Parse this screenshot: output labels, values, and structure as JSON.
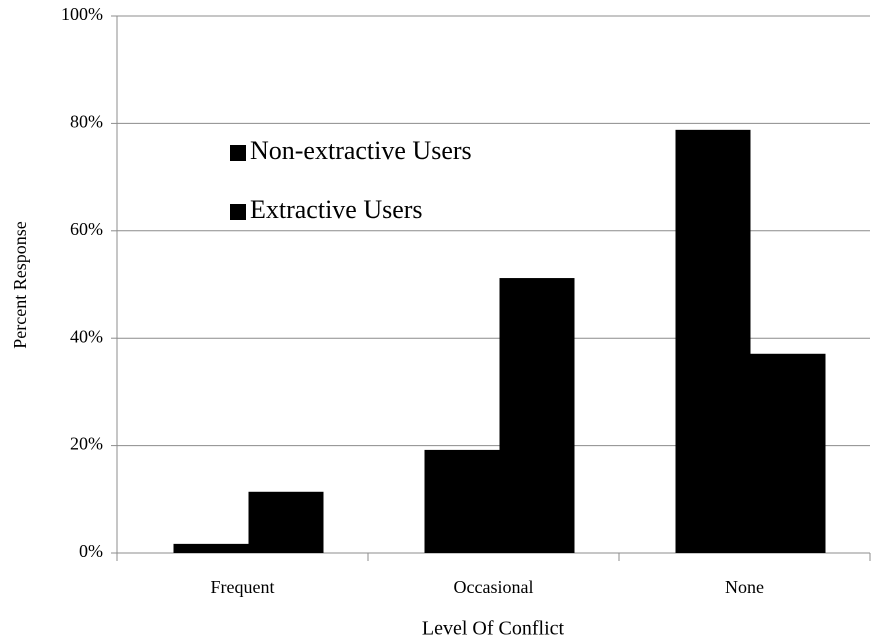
{
  "chart_data": {
    "type": "bar",
    "y_label": "Percent Response",
    "x_label": "Level Of Conflict",
    "categories": [
      "Frequent",
      "Occasional",
      "None"
    ],
    "series": [
      {
        "name": "Non-extractive Users",
        "color": "#000000",
        "values": [
          1.7,
          19.2,
          78.8
        ]
      },
      {
        "name": "Extractive Users",
        "color": "#000000",
        "values": [
          11.4,
          51.2,
          37.1
        ]
      }
    ],
    "ylim": [
      0,
      100
    ],
    "yticks": [
      {
        "value": 0,
        "label": "0%"
      },
      {
        "value": 20,
        "label": "20%"
      },
      {
        "value": 40,
        "label": "40%"
      },
      {
        "value": 60,
        "label": "60%"
      },
      {
        "value": 80,
        "label": "80%"
      },
      {
        "value": 100,
        "label": "100%"
      }
    ],
    "grid": true,
    "legend": "upper left"
  }
}
